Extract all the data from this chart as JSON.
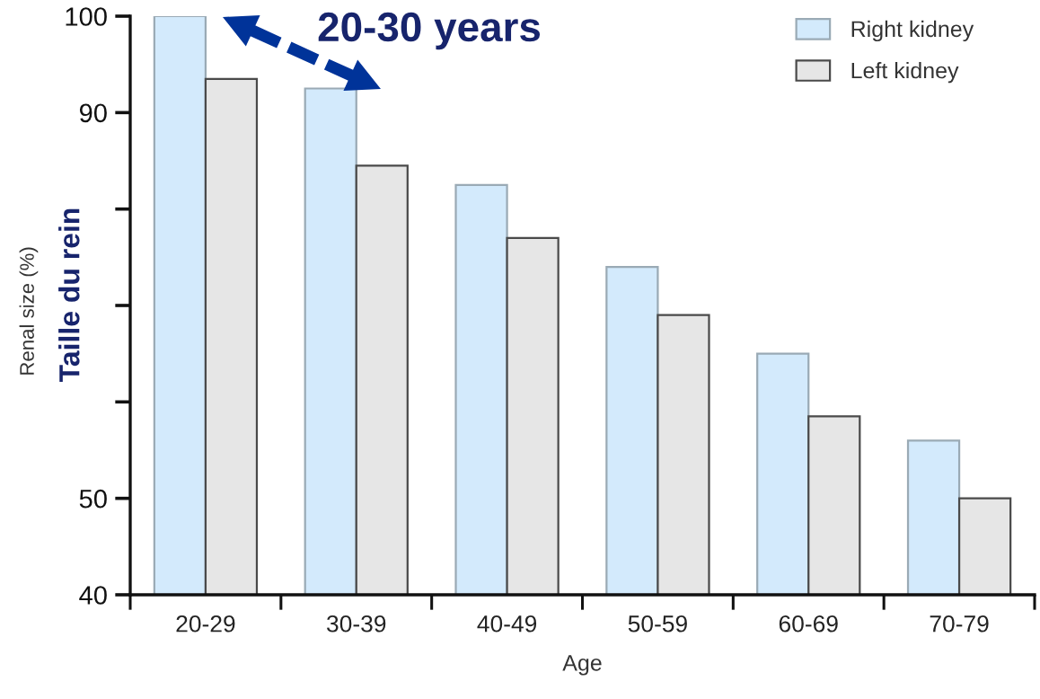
{
  "chart_data": {
    "type": "bar",
    "categories": [
      "20-29",
      "30-39",
      "40-49",
      "50-59",
      "60-69",
      "70-79"
    ],
    "series": [
      {
        "name": "Right kidney",
        "color": "#d3eafc",
        "values": [
          100,
          92.5,
          82.5,
          74,
          65,
          56
        ]
      },
      {
        "name": "Left kidney",
        "color": "#e6e6e6",
        "values": [
          93.5,
          84.5,
          77,
          69,
          58.5,
          50
        ]
      }
    ],
    "xlabel": "Age",
    "ylabel": "Renal size (%)",
    "annotations": [
      "20-30 years",
      "Taille du rein"
    ],
    "ylim": [
      40,
      100
    ],
    "yticks": [
      40,
      50,
      90,
      100
    ],
    "legend": "top right"
  }
}
